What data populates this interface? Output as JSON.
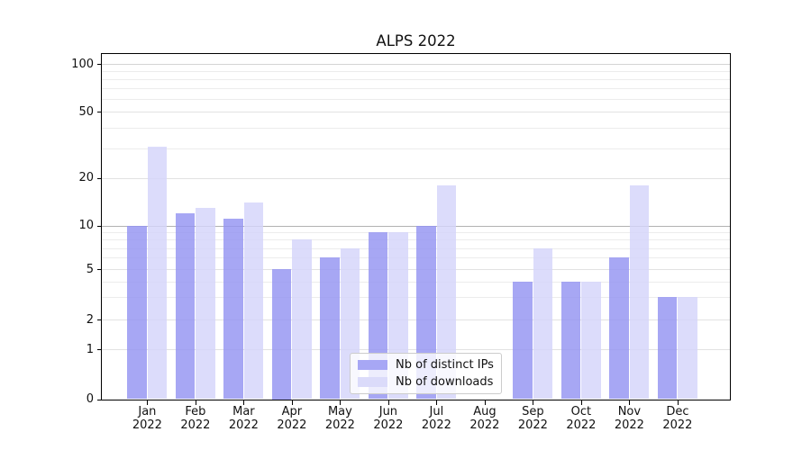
{
  "title": "ALPS 2022",
  "chart_data": {
    "type": "bar",
    "title": "ALPS 2022",
    "categories": [
      "Jan 2022",
      "Feb 2022",
      "Mar 2022",
      "Apr 2022",
      "May 2022",
      "Jun 2022",
      "Jul 2022",
      "Aug 2022",
      "Sep 2022",
      "Oct 2022",
      "Nov 2022",
      "Dec 2022"
    ],
    "series": [
      {
        "name": "Nb of distinct IPs",
        "color": "rgba(148,148,241,0.82)",
        "swatch_color": "#a7a7f5",
        "values": [
          10,
          12,
          11,
          5,
          6,
          9,
          10,
          0,
          4,
          4,
          6,
          3
        ]
      },
      {
        "name": "Nb of downloads",
        "color": "rgba(212,212,250,0.82)",
        "swatch_color": "#dbdbfa",
        "values": [
          31,
          13,
          14,
          8,
          7,
          9,
          18,
          0,
          7,
          4,
          18,
          3
        ]
      }
    ],
    "xlabel": "",
    "ylabel": "",
    "yscale": "symlog",
    "ylim": [
      0,
      130
    ],
    "y_major_ticks": [
      0,
      1,
      2,
      5,
      10,
      20,
      50,
      100
    ],
    "y_minor_gridlines": [
      3,
      4,
      6,
      7,
      8,
      9,
      30,
      40,
      60,
      70,
      80,
      90
    ],
    "grid": "both",
    "legend_position": "lower center",
    "colors": {
      "grid_minor": "#ececec",
      "grid_major": "#e2e2e2",
      "grid_major_10": "#b2b2b2",
      "grid_major_100": "#d4d4d4",
      "spine": "#000000",
      "text": "#111111"
    }
  }
}
